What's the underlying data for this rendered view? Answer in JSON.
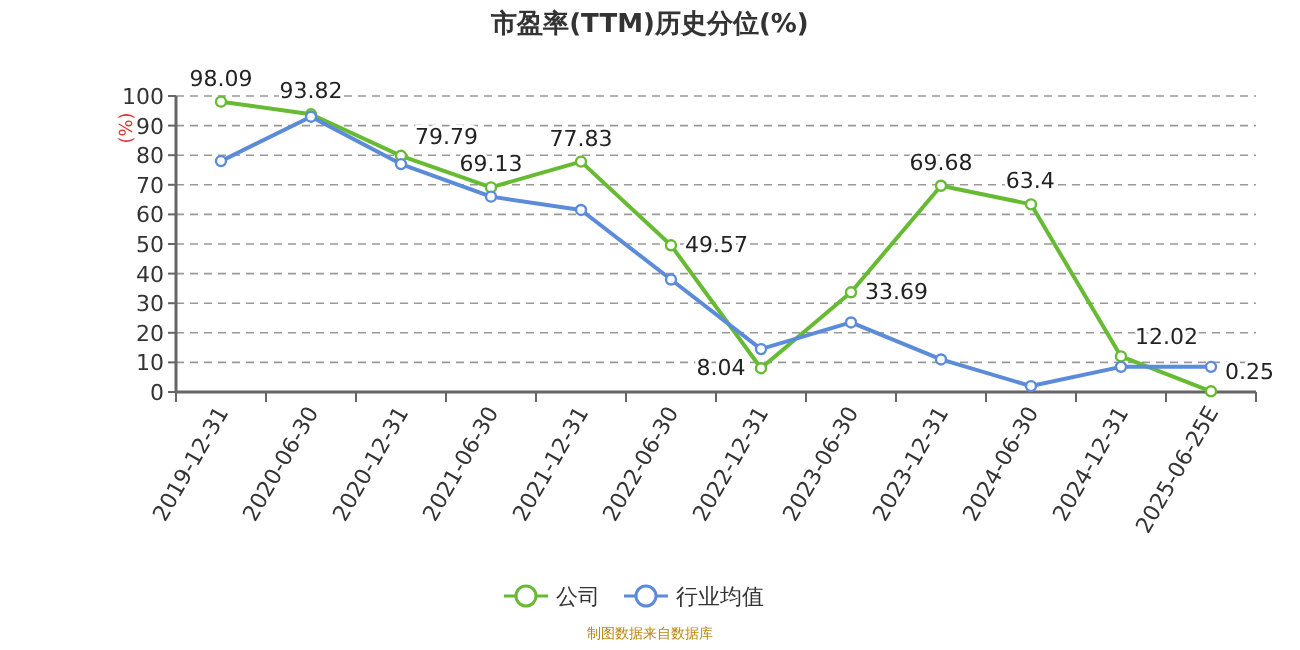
{
  "chart_data": {
    "type": "line",
    "title": "市盈率(TTM)历史分位(%)",
    "ylabel": "(%)",
    "categories": [
      "2019-12-31",
      "2020-06-30",
      "2020-12-31",
      "2021-06-30",
      "2021-12-31",
      "2022-06-30",
      "2022-12-31",
      "2023-06-30",
      "2023-12-31",
      "2024-06-30",
      "2024-12-31",
      "2025-06-25E"
    ],
    "series": [
      {
        "name": "公司",
        "color": "#66bb33",
        "values": [
          98.09,
          93.82,
          79.79,
          69.13,
          77.83,
          49.57,
          8.04,
          33.69,
          69.68,
          63.4,
          12.02,
          0.25
        ],
        "value_labels": [
          "98.09",
          "93.82",
          "79.79",
          "69.13",
          "77.83",
          "49.57",
          "8.04",
          "33.69",
          "69.68",
          "63.4",
          "12.02",
          "0.25"
        ]
      },
      {
        "name": "行业均值",
        "color": "#5b8bd9",
        "values": [
          78,
          93,
          77,
          66,
          61.5,
          38,
          14.5,
          23.5,
          11,
          2,
          8.5,
          8.5
        ]
      }
    ],
    "ylim": [
      0,
      100
    ],
    "yticks": [
      0,
      10,
      20,
      30,
      40,
      50,
      60,
      70,
      80,
      90,
      100
    ],
    "grid": "y",
    "legend": "bottom",
    "marker": "circle",
    "line_style": "solid",
    "annotations": [
      "制图数据来自数据库"
    ]
  }
}
